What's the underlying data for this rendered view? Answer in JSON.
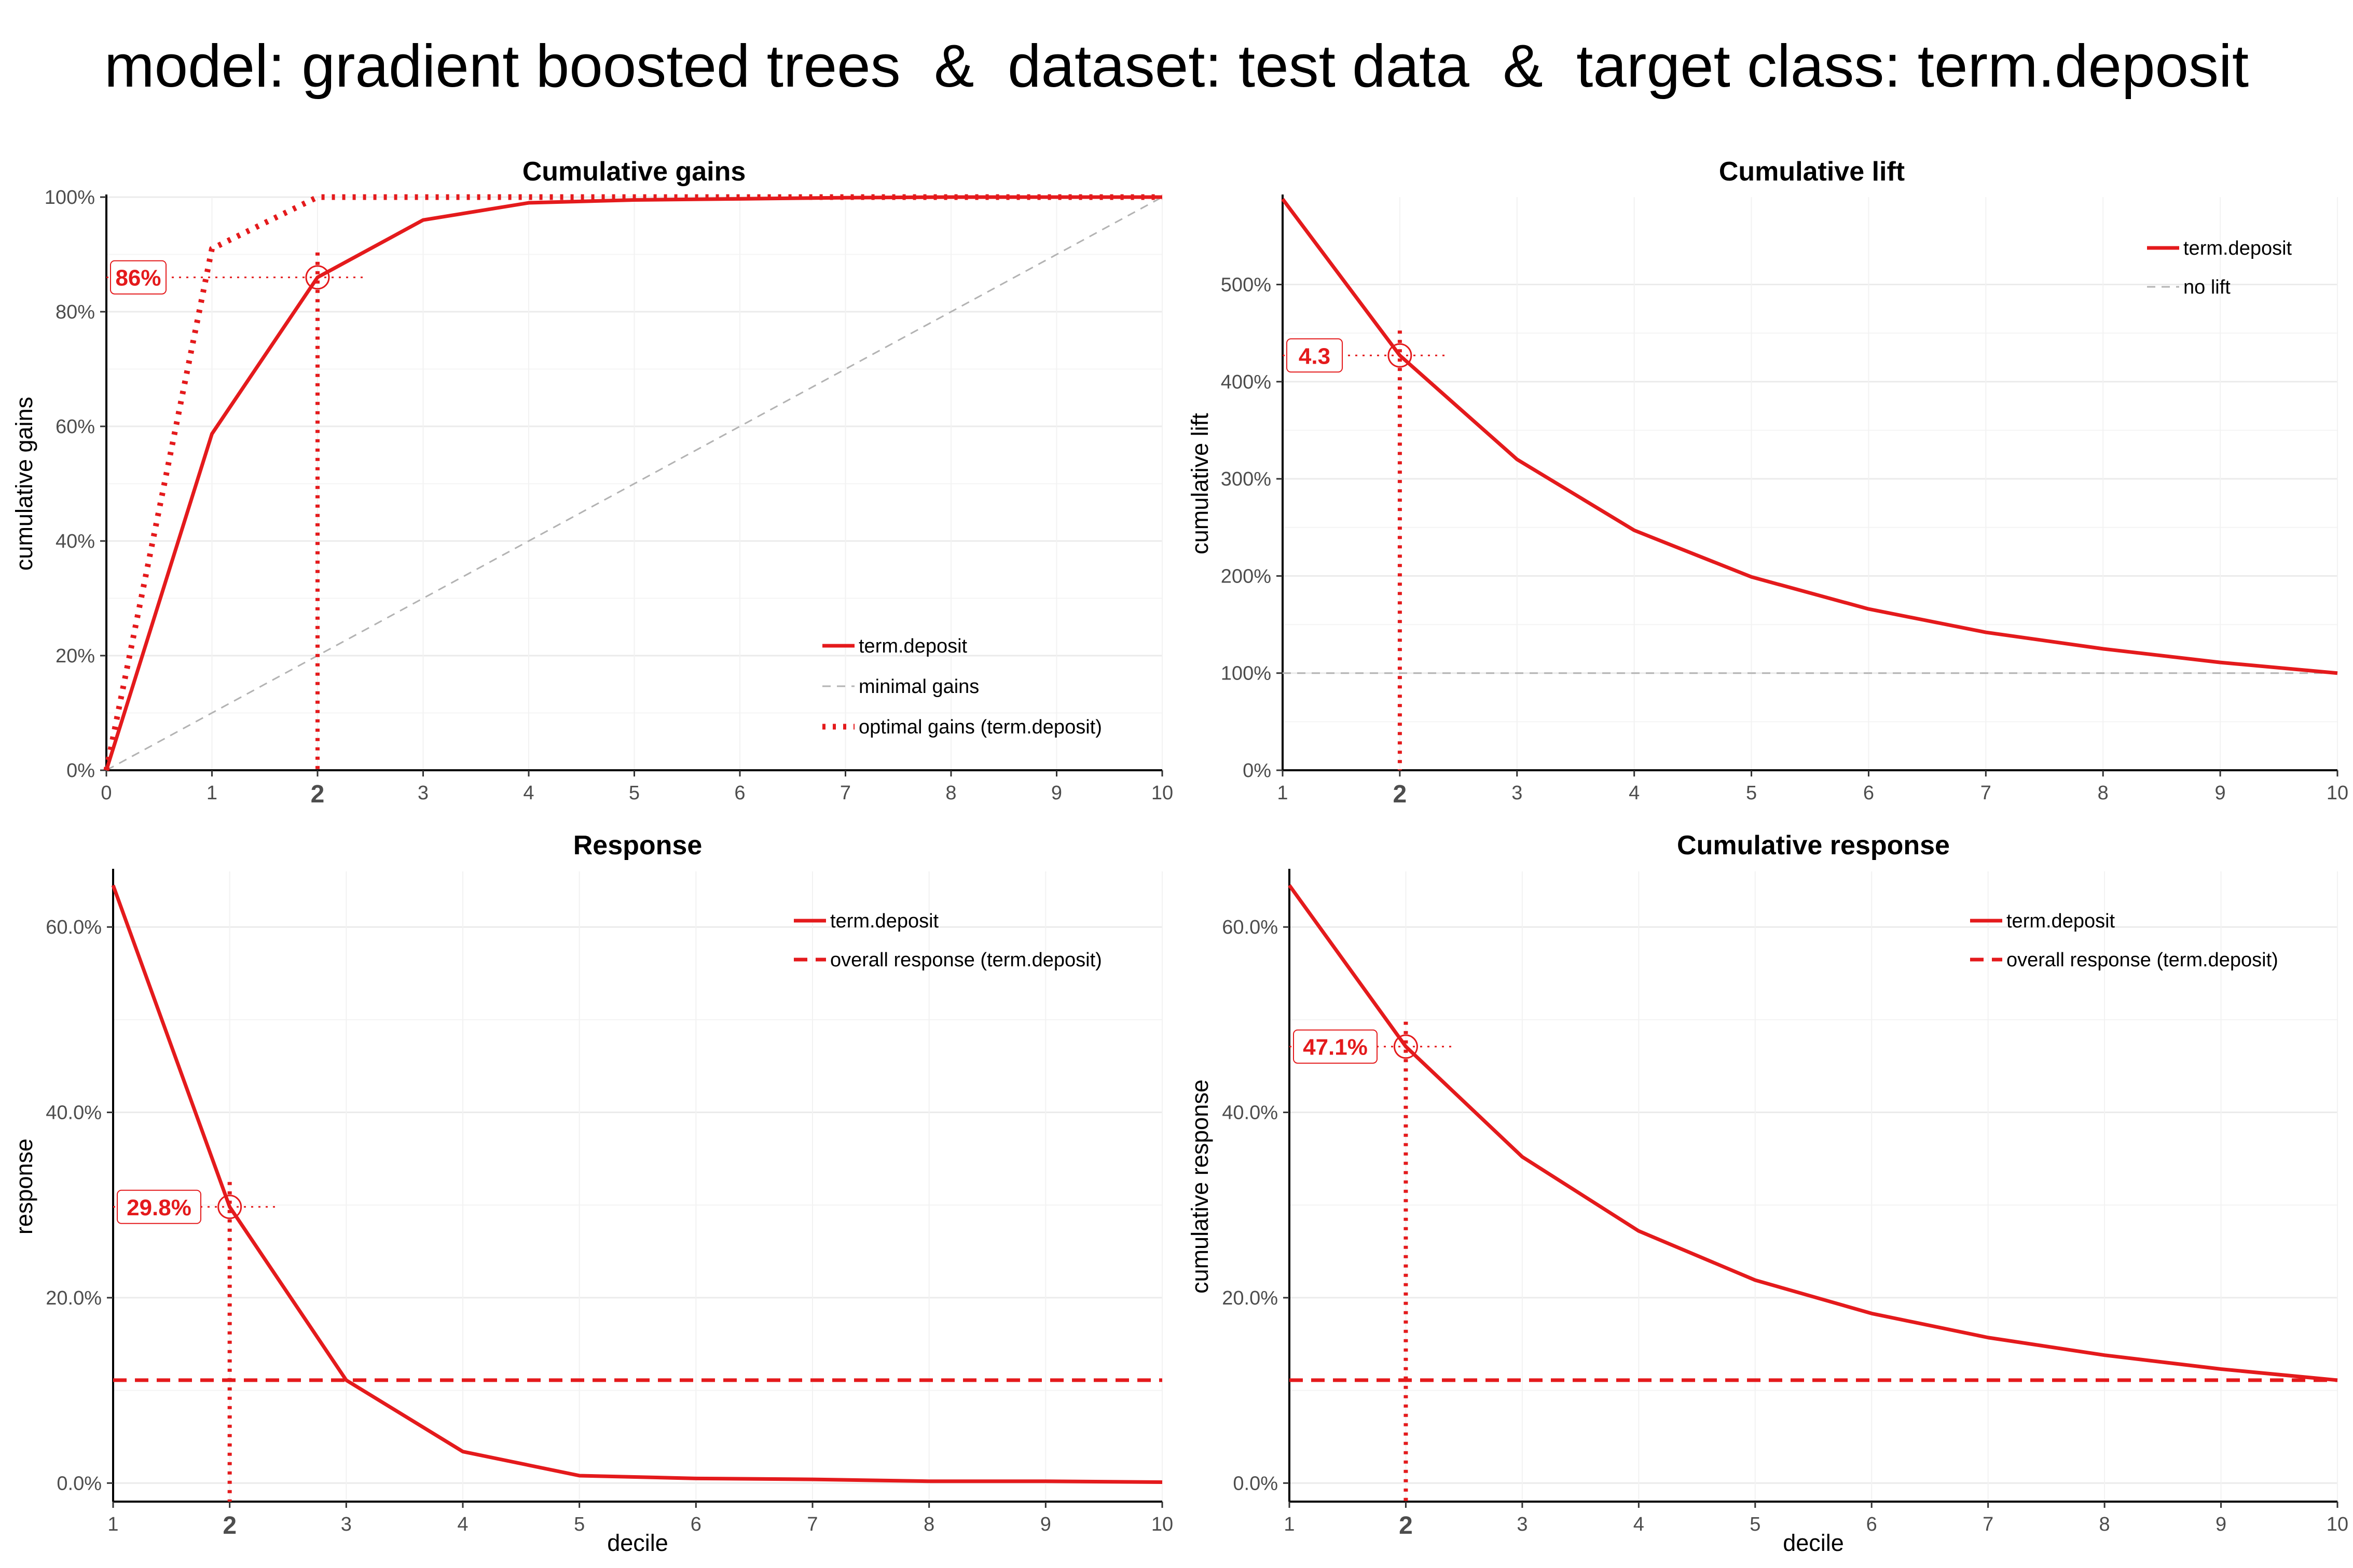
{
  "title": "model: gradient boosted trees  &  dataset: test data  &  target class: term.deposit",
  "colors": {
    "series": "#e41a1c",
    "reference": "#b3b3b3",
    "grid": "#ebebeb"
  },
  "chart_data": [
    {
      "id": "gains",
      "type": "line",
      "title": "Cumulative gains",
      "xlabel": "",
      "ylabel": "cumulative gains",
      "xlim": [
        0,
        10
      ],
      "ylim": [
        0,
        1
      ],
      "x_ticks": [
        "0",
        "1",
        "2",
        "3",
        "4",
        "5",
        "6",
        "7",
        "8",
        "9",
        "10"
      ],
      "y_ticks": [
        {
          "value": 0,
          "label": "0%"
        },
        {
          "value": 0.2,
          "label": "20%"
        },
        {
          "value": 0.4,
          "label": "40%"
        },
        {
          "value": 0.6,
          "label": "60%"
        },
        {
          "value": 0.8,
          "label": "80%"
        },
        {
          "value": 1,
          "label": "100%"
        }
      ],
      "highlight_tick": "2",
      "series": [
        {
          "name": "term.deposit",
          "style": "solid",
          "x": [
            0,
            1,
            2,
            3,
            4,
            5,
            6,
            7,
            8,
            9,
            10
          ],
          "values": [
            0,
            0.587,
            0.86,
            0.96,
            0.99,
            0.995,
            0.997,
            0.999,
            1,
            1,
            1
          ]
        },
        {
          "name": "minimal gains",
          "style": "reference",
          "x": [
            0,
            10
          ],
          "values": [
            0,
            1
          ]
        },
        {
          "name": "optimal gains (term.deposit)",
          "style": "dotted",
          "x": [
            0,
            1,
            2,
            3,
            4,
            5,
            6,
            7,
            8,
            9,
            10
          ],
          "values": [
            0,
            0.91,
            1,
            1,
            1,
            1,
            1,
            1,
            1,
            1,
            1
          ]
        }
      ],
      "legend_position": "bottom-right",
      "annotation": {
        "x": 2,
        "y": 0.86,
        "label": "86%"
      }
    },
    {
      "id": "lift",
      "type": "line",
      "title": "Cumulative lift",
      "xlabel": "",
      "ylabel": "cumulative lift",
      "xlim": [
        1,
        10
      ],
      "ylim": [
        0,
        5.9
      ],
      "x_ticks": [
        "1",
        "2",
        "3",
        "4",
        "5",
        "6",
        "7",
        "8",
        "9",
        "10"
      ],
      "y_ticks": [
        {
          "value": 0,
          "label": "0%"
        },
        {
          "value": 1,
          "label": "100%"
        },
        {
          "value": 2,
          "label": "200%"
        },
        {
          "value": 3,
          "label": "300%"
        },
        {
          "value": 4,
          "label": "400%"
        },
        {
          "value": 5,
          "label": "500%"
        }
      ],
      "highlight_tick": "2",
      "series": [
        {
          "name": "term.deposit",
          "style": "solid",
          "x": [
            1,
            2,
            3,
            4,
            5,
            6,
            7,
            8,
            9,
            10
          ],
          "values": [
            5.88,
            4.27,
            3.2,
            2.47,
            1.99,
            1.66,
            1.42,
            1.25,
            1.11,
            1.0
          ]
        },
        {
          "name": "no lift",
          "style": "reference",
          "x": [
            1,
            10
          ],
          "values": [
            1,
            1
          ]
        }
      ],
      "legend_position": "top-right",
      "annotation": {
        "x": 2,
        "y": 4.27,
        "label": "4.3"
      }
    },
    {
      "id": "response",
      "type": "line",
      "title": "Response",
      "xlabel": "decile",
      "ylabel": "response",
      "xlim": [
        1,
        10
      ],
      "ylim": [
        -0.02,
        0.66
      ],
      "x_ticks": [
        "1",
        "2",
        "3",
        "4",
        "5",
        "6",
        "7",
        "8",
        "9",
        "10"
      ],
      "y_ticks": [
        {
          "value": 0,
          "label": "0.0%"
        },
        {
          "value": 0.2,
          "label": "20.0%"
        },
        {
          "value": 0.4,
          "label": "40.0%"
        },
        {
          "value": 0.6,
          "label": "60.0%"
        }
      ],
      "highlight_tick": "2",
      "series": [
        {
          "name": "term.deposit",
          "style": "solid",
          "x": [
            1,
            2,
            3,
            4,
            5,
            6,
            7,
            8,
            9,
            10
          ],
          "values": [
            0.645,
            0.298,
            0.111,
            0.034,
            0.008,
            0.005,
            0.004,
            0.002,
            0.002,
            0.001
          ]
        },
        {
          "name": "overall response (term.deposit)",
          "style": "dashed",
          "x": [
            1,
            10
          ],
          "values": [
            0.111,
            0.111
          ]
        }
      ],
      "legend_position": "top-right",
      "annotation": {
        "x": 2,
        "y": 0.298,
        "label": "29.8%"
      }
    },
    {
      "id": "cumresponse",
      "type": "line",
      "title": "Cumulative response",
      "xlabel": "decile",
      "ylabel": "cumulative response",
      "xlim": [
        1,
        10
      ],
      "ylim": [
        -0.02,
        0.66
      ],
      "x_ticks": [
        "1",
        "2",
        "3",
        "4",
        "5",
        "6",
        "7",
        "8",
        "9",
        "10"
      ],
      "y_ticks": [
        {
          "value": 0,
          "label": "0.0%"
        },
        {
          "value": 0.2,
          "label": "20.0%"
        },
        {
          "value": 0.4,
          "label": "40.0%"
        },
        {
          "value": 0.6,
          "label": "60.0%"
        }
      ],
      "highlight_tick": "2",
      "series": [
        {
          "name": "term.deposit",
          "style": "solid",
          "x": [
            1,
            2,
            3,
            4,
            5,
            6,
            7,
            8,
            9,
            10
          ],
          "values": [
            0.645,
            0.471,
            0.352,
            0.272,
            0.219,
            0.183,
            0.157,
            0.138,
            0.123,
            0.111
          ]
        },
        {
          "name": "overall response (term.deposit)",
          "style": "dashed",
          "x": [
            1,
            10
          ],
          "values": [
            0.111,
            0.111
          ]
        }
      ],
      "legend_position": "top-right",
      "annotation": {
        "x": 2,
        "y": 0.471,
        "label": "47.1%"
      }
    }
  ]
}
